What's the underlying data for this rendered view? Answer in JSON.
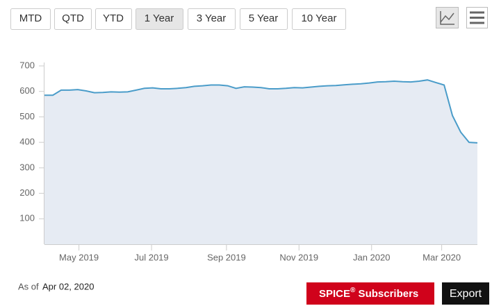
{
  "toolbar": {
    "ranges": [
      "MTD",
      "QTD",
      "YTD",
      "1 Year",
      "3 Year",
      "5 Year",
      "10 Year"
    ]
  },
  "chart_data": {
    "type": "area",
    "values": [
      585,
      585,
      605,
      605,
      607,
      602,
      595,
      596,
      598,
      597,
      598,
      605,
      612,
      614,
      610,
      610,
      612,
      615,
      620,
      622,
      625,
      625,
      622,
      612,
      618,
      617,
      615,
      610,
      610,
      612,
      615,
      614,
      617,
      620,
      622,
      623,
      626,
      628,
      630,
      633,
      637,
      638,
      640,
      638,
      637,
      640,
      645,
      635,
      625,
      505,
      440,
      400,
      398
    ],
    "color": "#4a9cc9",
    "xlim": [
      0,
      52
    ],
    "xticks": [
      {
        "value": 4.14,
        "label": "May 2019"
      },
      {
        "value": 12.86,
        "label": "Jul 2019"
      },
      {
        "value": 21.86,
        "label": "Sep 2019"
      },
      {
        "value": 30.57,
        "label": "Nov 2019"
      },
      {
        "value": 39.29,
        "label": "Jan 2020"
      },
      {
        "value": 47.71,
        "label": "Mar 2020"
      }
    ],
    "ylim": [
      0,
      700
    ],
    "yticks": [
      100,
      200,
      300,
      400,
      500,
      600,
      700
    ],
    "grid": false
  },
  "footer": {
    "as_of_label": "As of",
    "as_of_date": "Apr 02, 2020",
    "spice": "SPICE",
    "registered": "®",
    "subscribers": " Subscribers",
    "export": "Export"
  }
}
